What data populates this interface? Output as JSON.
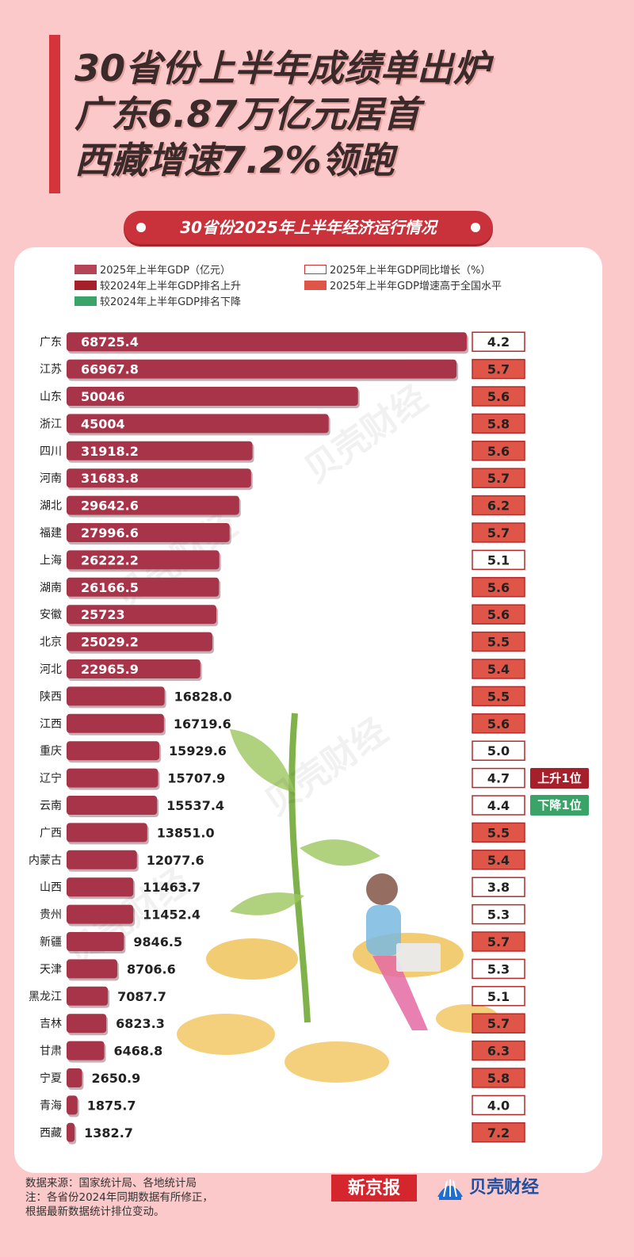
{
  "title": {
    "line1": "30省份上半年成绩单出炉",
    "line2": "广东6.87万亿元居首",
    "line3": "西藏增速7.2%领跑"
  },
  "subtitle": "30省份2025年上半年经济运行情况",
  "legend": {
    "gdp": "2025年上半年GDP（亿元）",
    "growth": "2025年上半年GDP同比增长（%）",
    "rank_up": "较2024年上半年GDP排名上升",
    "above_national": "2025年上半年GDP增速高于全国水平",
    "rank_down": "较2024年上半年GDP排名下降"
  },
  "colors": {
    "bar": "#a8344a",
    "above_national": "#df5648",
    "rank_up": "#a5202a",
    "rank_down": "#3aa468",
    "accent": "#d6343b"
  },
  "watermark": "贝壳财经",
  "chart_data": {
    "type": "bar",
    "orientation": "horizontal",
    "categories": [
      "广东",
      "江苏",
      "山东",
      "浙江",
      "四川",
      "河南",
      "湖北",
      "福建",
      "上海",
      "湖南",
      "安徽",
      "北京",
      "河北",
      "陕西",
      "江西",
      "重庆",
      "辽宁",
      "云南",
      "广西",
      "内蒙古",
      "山西",
      "贵州",
      "新疆",
      "天津",
      "黑龙江",
      "吉林",
      "甘肃",
      "宁夏",
      "青海",
      "西藏"
    ],
    "series": [
      {
        "name": "2025年上半年GDP（亿元）",
        "values": [
          68725.4,
          66967.8,
          50046,
          45004,
          31918.2,
          31683.8,
          29642.6,
          27996.6,
          26222.2,
          26166.5,
          25723,
          25029.2,
          22965.9,
          16828.0,
          16719.6,
          15929.6,
          15707.9,
          15537.4,
          13851.0,
          12077.6,
          11463.7,
          11452.4,
          9846.5,
          8706.6,
          7087.7,
          6823.3,
          6468.8,
          2650.9,
          1875.7,
          1382.7
        ],
        "labels": [
          "68725.4",
          "66967.8",
          "50046",
          "45004",
          "31918.2",
          "31683.8",
          "29642.6",
          "27996.6",
          "26222.2",
          "26166.5",
          "25723",
          "25029.2",
          "22965.9",
          "16828.0",
          "16719.6",
          "15929.6",
          "15707.9",
          "15537.4",
          "13851.0",
          "12077.6",
          "11463.7",
          "11452.4",
          "9846.5",
          "8706.6",
          "7087.7",
          "6823.3",
          "6468.8",
          "2650.9",
          "1875.7",
          "1382.7"
        ]
      },
      {
        "name": "2025年上半年GDP同比增长（%）",
        "values": [
          4.2,
          5.7,
          5.6,
          5.8,
          5.6,
          5.7,
          6.2,
          5.7,
          5.1,
          5.6,
          5.6,
          5.5,
          5.4,
          5.5,
          5.6,
          5.0,
          4.7,
          4.4,
          5.5,
          5.4,
          3.8,
          5.3,
          5.7,
          5.3,
          5.1,
          5.7,
          6.3,
          5.8,
          4.0,
          7.2
        ],
        "labels": [
          "4.2",
          "5.7",
          "5.6",
          "5.8",
          "5.6",
          "5.7",
          "6.2",
          "5.7",
          "5.1",
          "5.6",
          "5.6",
          "5.5",
          "5.4",
          "5.5",
          "5.6",
          "5.0",
          "4.7",
          "4.4",
          "5.5",
          "5.4",
          "3.8",
          "5.3",
          "5.7",
          "5.3",
          "5.1",
          "5.7",
          "6.3",
          "5.8",
          "4.0",
          "7.2"
        ],
        "above_national": [
          false,
          true,
          true,
          true,
          true,
          true,
          true,
          true,
          false,
          true,
          true,
          true,
          true,
          true,
          true,
          false,
          false,
          false,
          true,
          true,
          false,
          false,
          true,
          false,
          false,
          true,
          true,
          true,
          false,
          true
        ]
      }
    ],
    "rank_change": [
      {
        "province": "辽宁",
        "label": "上升1位",
        "direction": "up"
      },
      {
        "province": "云南",
        "label": "下降1位",
        "direction": "down"
      }
    ],
    "xlim": [
      0,
      70000
    ]
  },
  "footer": {
    "source": "数据来源：国家统计局、各地统计局",
    "note1": "注：各省份2024年同期数据有所修正，",
    "note2": "根据最新数据统计排位变动。"
  },
  "logos": {
    "xjb": "新京报",
    "bk": "贝壳财经"
  }
}
